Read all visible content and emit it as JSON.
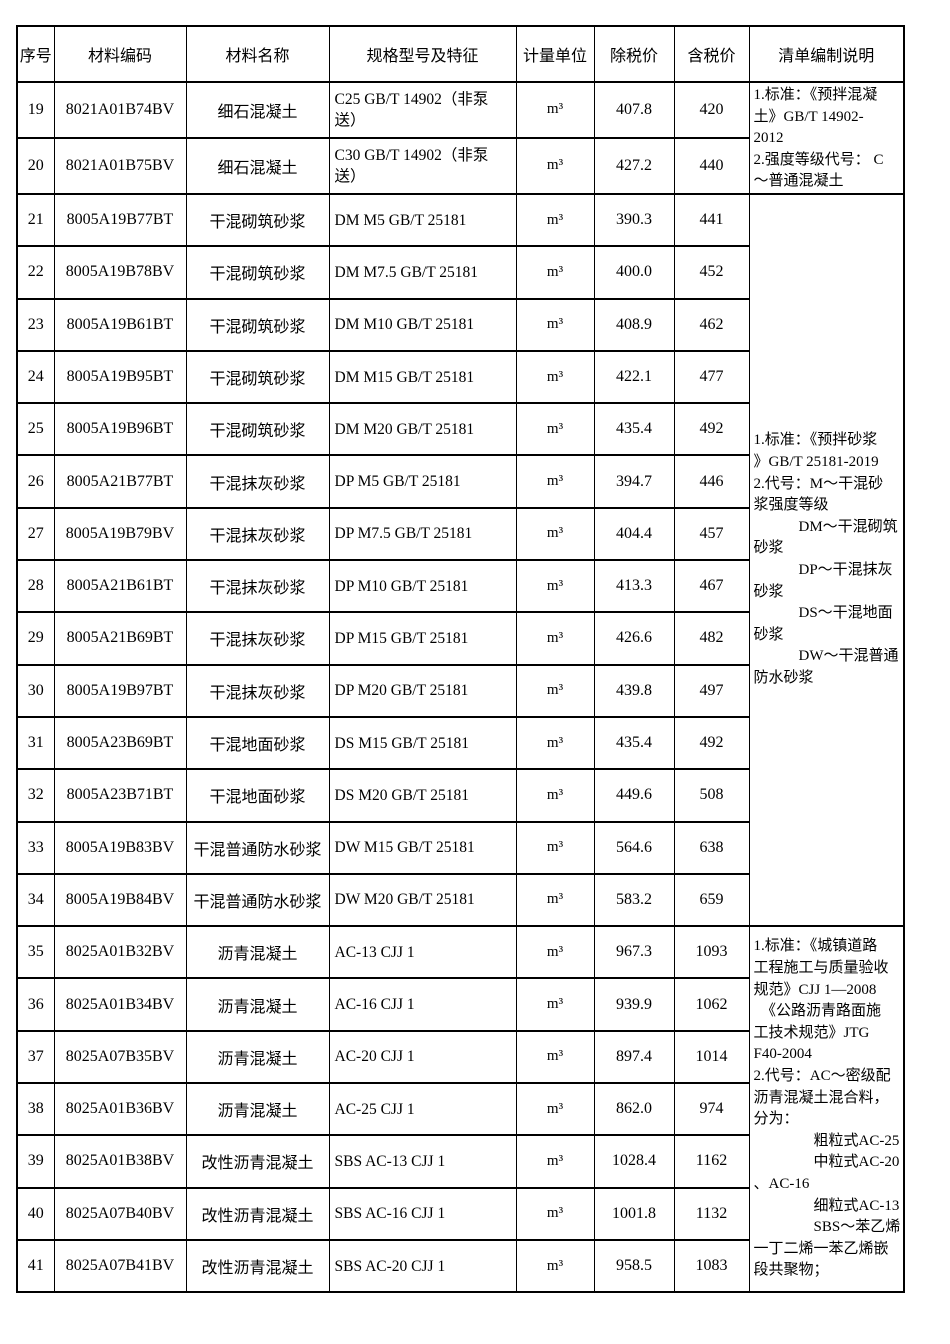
{
  "table": {
    "headers": [
      "序号",
      "材料编码",
      "材料名称",
      "规格型号及特征",
      "计量单位",
      "除税价",
      "含税价",
      "清单编制说明"
    ],
    "rows": [
      {
        "sn": "19",
        "code": "8021A01B74BV",
        "name": "细石混凝土",
        "spec": "C25  GB/T 14902（非泵送）",
        "unit": "m³",
        "price_ex": "407.8",
        "price_inc": "420"
      },
      {
        "sn": "20",
        "code": "8021A01B75BV",
        "name": "细石混凝土",
        "spec": "C30  GB/T 14902（非泵送）",
        "unit": "m³",
        "price_ex": "427.2",
        "price_inc": "440"
      },
      {
        "sn": "21",
        "code": "8005A19B77BT",
        "name": "干混砌筑砂浆",
        "spec": "DM M5  GB/T 25181",
        "unit": "m³",
        "price_ex": "390.3",
        "price_inc": "441"
      },
      {
        "sn": "22",
        "code": "8005A19B78BV",
        "name": "干混砌筑砂浆",
        "spec": "DM M7.5  GB/T 25181",
        "unit": "m³",
        "price_ex": "400.0",
        "price_inc": "452"
      },
      {
        "sn": "23",
        "code": "8005A19B61BT",
        "name": "干混砌筑砂浆",
        "spec": "DM M10  GB/T 25181",
        "unit": "m³",
        "price_ex": "408.9",
        "price_inc": "462"
      },
      {
        "sn": "24",
        "code": "8005A19B95BT",
        "name": "干混砌筑砂浆",
        "spec": "DM M15  GB/T 25181",
        "unit": "m³",
        "price_ex": "422.1",
        "price_inc": "477"
      },
      {
        "sn": "25",
        "code": "8005A19B96BT",
        "name": "干混砌筑砂浆",
        "spec": "DM M20  GB/T 25181",
        "unit": "m³",
        "price_ex": "435.4",
        "price_inc": "492"
      },
      {
        "sn": "26",
        "code": "8005A21B77BT",
        "name": "干混抹灰砂浆",
        "spec": "DP M5  GB/T 25181",
        "unit": "m³",
        "price_ex": "394.7",
        "price_inc": "446"
      },
      {
        "sn": "27",
        "code": "8005A19B79BV",
        "name": "干混抹灰砂浆",
        "spec": "DP M7.5  GB/T 25181",
        "unit": "m³",
        "price_ex": "404.4",
        "price_inc": "457"
      },
      {
        "sn": "28",
        "code": "8005A21B61BT",
        "name": "干混抹灰砂浆",
        "spec": "DP M10  GB/T 25181",
        "unit": "m³",
        "price_ex": "413.3",
        "price_inc": "467"
      },
      {
        "sn": "29",
        "code": "8005A21B69BT",
        "name": "干混抹灰砂浆",
        "spec": "DP M15  GB/T 25181",
        "unit": "m³",
        "price_ex": "426.6",
        "price_inc": "482"
      },
      {
        "sn": "30",
        "code": "8005A19B97BT",
        "name": "干混抹灰砂浆",
        "spec": "DP M20  GB/T 25181",
        "unit": "m³",
        "price_ex": "439.8",
        "price_inc": "497"
      },
      {
        "sn": "31",
        "code": "8005A23B69BT",
        "name": "干混地面砂浆",
        "spec": "DS M15  GB/T 25181",
        "unit": "m³",
        "price_ex": "435.4",
        "price_inc": "492"
      },
      {
        "sn": "32",
        "code": "8005A23B71BT",
        "name": "干混地面砂浆",
        "spec": "DS M20  GB/T 25181",
        "unit": "m³",
        "price_ex": "449.6",
        "price_inc": "508"
      },
      {
        "sn": "33",
        "code": "8005A19B83BV",
        "name": "干混普通防水砂浆",
        "spec": "DW M15  GB/T 25181",
        "unit": "m³",
        "price_ex": "564.6",
        "price_inc": "638"
      },
      {
        "sn": "34",
        "code": "8005A19B84BV",
        "name": "干混普通防水砂浆",
        "spec": "DW M20  GB/T 25181",
        "unit": "m³",
        "price_ex": "583.2",
        "price_inc": "659"
      },
      {
        "sn": "35",
        "code": "8025A01B32BV",
        "name": "沥青混凝土",
        "spec": "AC-13  CJJ 1",
        "unit": "m³",
        "price_ex": "967.3",
        "price_inc": "1093"
      },
      {
        "sn": "36",
        "code": "8025A01B34BV",
        "name": "沥青混凝土",
        "spec": "AC-16  CJJ 1",
        "unit": "m³",
        "price_ex": "939.9",
        "price_inc": "1062"
      },
      {
        "sn": "37",
        "code": "8025A07B35BV",
        "name": "沥青混凝土",
        "spec": "AC-20  CJJ 1",
        "unit": "m³",
        "price_ex": "897.4",
        "price_inc": "1014"
      },
      {
        "sn": "38",
        "code": "8025A01B36BV",
        "name": "沥青混凝土",
        "spec": "AC-25  CJJ 1",
        "unit": "m³",
        "price_ex": "862.0",
        "price_inc": "974"
      },
      {
        "sn": "39",
        "code": "8025A01B38BV",
        "name": "改性沥青混凝土",
        "spec": "SBS AC-13  CJJ 1",
        "unit": "m³",
        "price_ex": "1028.4",
        "price_inc": "1162"
      },
      {
        "sn": "40",
        "code": "8025A07B40BV",
        "name": "改性沥青混凝土",
        "spec": "SBS AC-16  CJJ 1",
        "unit": "m³",
        "price_ex": "1001.8",
        "price_inc": "1132"
      },
      {
        "sn": "41",
        "code": "8025A07B41BV",
        "name": "改性沥青混凝土",
        "spec": "SBS AC-20  CJJ 1",
        "unit": "m³",
        "price_ex": "958.5",
        "price_inc": "1083"
      }
    ],
    "notes": [
      {
        "row_start": 0,
        "rowspan": 2,
        "align": "top",
        "text": "1.标准：《预拌混凝\n土》GB/T 14902-\n2012\n2.强度等级代号： C\n～普通混凝土"
      },
      {
        "row_start": 2,
        "rowspan": 14,
        "align": "middle",
        "text": "1.标准：《预拌砂浆\n》GB/T 25181-2019\n2.代号：M～干混砂\n浆强度等级\n　　　DM～干混砌筑\n砂浆\n　　　DP～干混抹灰\n砂浆\n　　　DS～干混地面\n砂浆\n　　　DW～干混普通\n防水砂浆"
      },
      {
        "row_start": 16,
        "rowspan": 7,
        "align": "middle",
        "text": "1.标准：《城镇道路\n工程施工与质量验收\n规范》CJJ 1—2008\n　《公路沥青路面施\n工技术规范》JTG\nF40-2004\n2.代号：AC～密级配\n沥青混凝土混合料，\n分为：\n　　　　粗粒式AC-25\n　　　　中粒式AC-20\n、AC-16\n　　　　细粒式AC-13\n　　　　SBS～苯乙烯\n一丁二烯一苯乙烯嵌\n段共聚物；"
      }
    ]
  }
}
